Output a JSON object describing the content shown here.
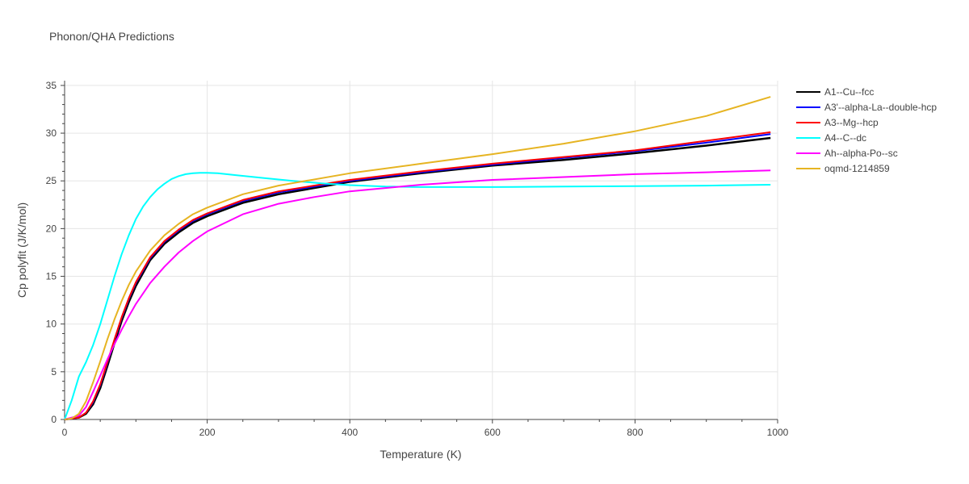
{
  "chart_data": {
    "type": "line",
    "title": "Phonon/QHA Predictions",
    "xlabel": "Temperature (K)",
    "ylabel": "Cp polyfit (J/K/mol)",
    "xlim": [
      0,
      1000
    ],
    "ylim": [
      0,
      35.5
    ],
    "x_ticks": [
      0,
      200,
      400,
      600,
      800,
      1000
    ],
    "y_ticks": [
      0,
      5,
      10,
      15,
      20,
      25,
      30,
      35
    ],
    "grid": true,
    "legend_position": "right",
    "series": [
      {
        "name": "A1--Cu--fcc",
        "color": "#000000",
        "x": [
          0,
          20,
          30,
          40,
          50,
          60,
          70,
          80,
          90,
          100,
          120,
          140,
          160,
          180,
          200,
          250,
          300,
          400,
          500,
          600,
          700,
          800,
          900,
          990
        ],
        "y": [
          0,
          0.2,
          0.6,
          1.6,
          3.3,
          5.6,
          8.0,
          10.3,
          12.3,
          14.0,
          16.7,
          18.4,
          19.6,
          20.6,
          21.3,
          22.7,
          23.6,
          24.9,
          25.8,
          26.6,
          27.2,
          27.9,
          28.7,
          29.5
        ]
      },
      {
        "name": "A3'--alpha-La--double-hcp",
        "color": "#0000ff",
        "x": [
          0,
          20,
          30,
          40,
          50,
          60,
          70,
          80,
          90,
          100,
          120,
          140,
          160,
          180,
          200,
          250,
          300,
          400,
          500,
          600,
          700,
          800,
          900,
          990
        ],
        "y": [
          0,
          0.2,
          0.7,
          1.8,
          3.6,
          5.9,
          8.3,
          10.6,
          12.6,
          14.3,
          16.9,
          18.6,
          19.8,
          20.8,
          21.5,
          22.9,
          23.8,
          25.0,
          25.9,
          26.7,
          27.4,
          28.1,
          29.0,
          29.9
        ]
      },
      {
        "name": "A3--Mg--hcp",
        "color": "#ff0000",
        "x": [
          0,
          20,
          30,
          40,
          50,
          60,
          70,
          80,
          90,
          100,
          120,
          140,
          160,
          180,
          200,
          250,
          300,
          400,
          500,
          600,
          700,
          800,
          900,
          990
        ],
        "y": [
          0,
          0.2,
          0.7,
          1.9,
          3.7,
          6.0,
          8.4,
          10.7,
          12.7,
          14.4,
          17.0,
          18.7,
          19.9,
          20.9,
          21.6,
          23.0,
          23.9,
          25.1,
          26.0,
          26.8,
          27.5,
          28.2,
          29.2,
          30.1
        ]
      },
      {
        "name": "A4--C--dc",
        "color": "#00ffff",
        "x": [
          0,
          10,
          20,
          30,
          40,
          50,
          60,
          70,
          80,
          90,
          100,
          110,
          120,
          130,
          140,
          150,
          160,
          170,
          180,
          190,
          200,
          215,
          240,
          280,
          320,
          360,
          400,
          450,
          500,
          600,
          700,
          800,
          900,
          990
        ],
        "y": [
          0,
          2.0,
          4.5,
          6.0,
          7.8,
          10.0,
          12.5,
          15.0,
          17.3,
          19.3,
          21.0,
          22.3,
          23.3,
          24.1,
          24.7,
          25.2,
          25.5,
          25.7,
          25.8,
          25.85,
          25.85,
          25.8,
          25.6,
          25.3,
          25.0,
          24.75,
          24.55,
          24.4,
          24.35,
          24.35,
          24.4,
          24.45,
          24.5,
          24.6
        ]
      },
      {
        "name": "Ah--alpha-Po--sc",
        "color": "#ff00ff",
        "x": [
          0,
          20,
          30,
          40,
          50,
          60,
          70,
          80,
          90,
          100,
          120,
          140,
          160,
          180,
          200,
          250,
          300,
          350,
          400,
          500,
          600,
          700,
          800,
          900,
          990
        ],
        "y": [
          0,
          0.4,
          1.3,
          2.9,
          4.6,
          6.3,
          7.9,
          9.4,
          10.8,
          12.1,
          14.3,
          16.0,
          17.5,
          18.7,
          19.7,
          21.5,
          22.6,
          23.3,
          23.9,
          24.6,
          25.1,
          25.4,
          25.7,
          25.9,
          26.1
        ]
      },
      {
        "name": "oqmd-1214859",
        "color": "#e6b422",
        "x": [
          0,
          10,
          20,
          30,
          40,
          50,
          60,
          70,
          80,
          90,
          100,
          120,
          140,
          160,
          180,
          200,
          250,
          300,
          400,
          500,
          600,
          700,
          800,
          900,
          990
        ],
        "y": [
          0,
          0.1,
          0.6,
          1.9,
          3.9,
          6.1,
          8.4,
          10.5,
          12.4,
          14.1,
          15.5,
          17.7,
          19.3,
          20.5,
          21.5,
          22.2,
          23.6,
          24.5,
          25.8,
          26.8,
          27.8,
          28.9,
          30.2,
          31.8,
          33.8
        ]
      }
    ]
  }
}
